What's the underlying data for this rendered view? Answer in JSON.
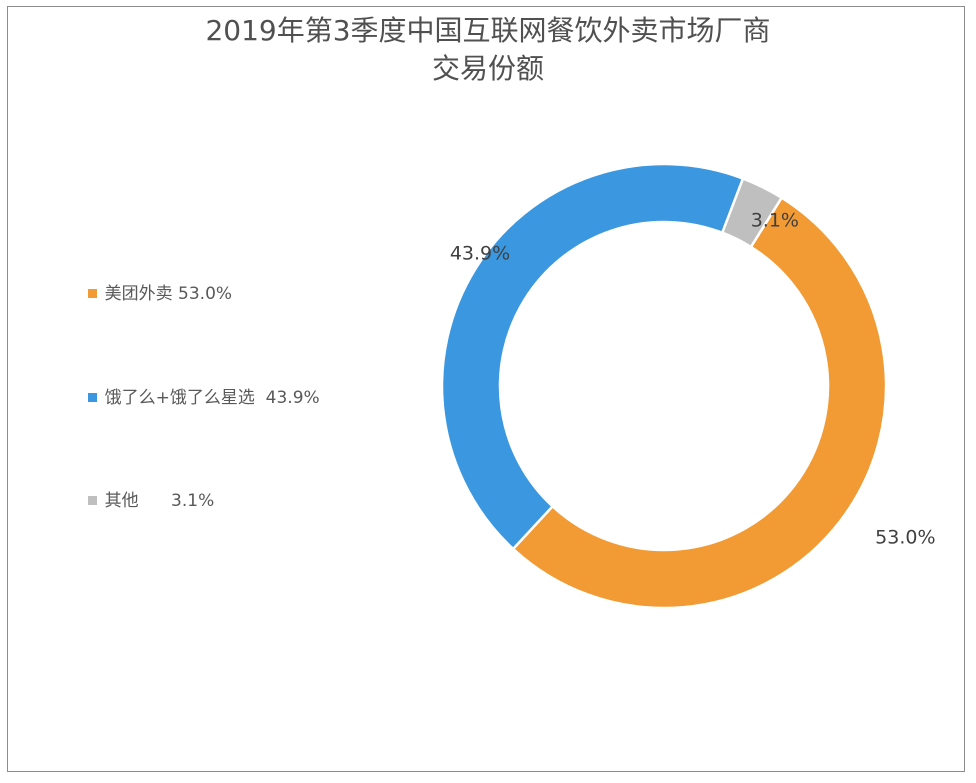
{
  "chart_data": {
    "type": "pie",
    "variant": "donut",
    "title": "2019年第3季度中国互联网餐饮外卖市场厂商交易份额",
    "title_lines": [
      "2019年第3季度中国互联网餐饮外卖市场厂商",
      "交易份额"
    ],
    "legend_position": "left",
    "unit": "%",
    "categories": [
      "美团外卖",
      "饿了么+饿了么星选",
      "其他"
    ],
    "values": [
      53.0,
      43.9,
      3.1
    ],
    "colors": [
      "#F29A33",
      "#3A97E0",
      "#BFBFBF"
    ],
    "legend_entries": [
      "美团外卖 53.0%",
      "饿了么+饿了么星选  43.9%",
      "其他      3.1%"
    ],
    "data_labels": [
      "53.0%",
      "43.9%",
      "3.1%"
    ]
  }
}
